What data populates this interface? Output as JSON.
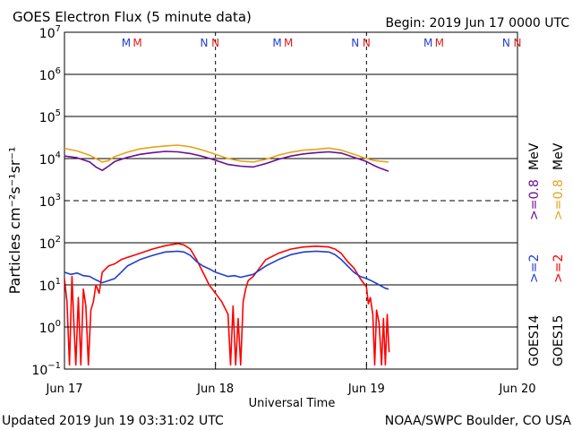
{
  "chart_data": {
    "type": "line",
    "title": "GOES Electron Flux (5 minute data)",
    "begin_label": "Begin: 2019 Jun 17 0000 UTC",
    "xlabel": "Universal Time",
    "ylabel": "Particles cm⁻²s⁻¹sr⁻¹",
    "x_unit": "hours since 2019 Jun 17 0000 UTC",
    "xlim": [
      0,
      72
    ],
    "ylim_log10": [
      -1,
      7
    ],
    "y_scale": "log",
    "x_ticks": [
      {
        "x": 0,
        "label": "Jun 17"
      },
      {
        "x": 24,
        "label": "Jun 18"
      },
      {
        "x": 48,
        "label": "Jun 19"
      },
      {
        "x": 72,
        "label": "Jun 20"
      }
    ],
    "y_ticks": [
      {
        "exp": -1,
        "base": "10",
        "sup": "−1"
      },
      {
        "exp": 0,
        "base": "10",
        "sup": "0"
      },
      {
        "exp": 1,
        "base": "10",
        "sup": "1"
      },
      {
        "exp": 2,
        "base": "10",
        "sup": "2"
      },
      {
        "exp": 3,
        "base": "10",
        "sup": "3"
      },
      {
        "exp": 4,
        "base": "10",
        "sup": "4"
      },
      {
        "exp": 5,
        "base": "10",
        "sup": "5"
      },
      {
        "exp": 6,
        "base": "10",
        "sup": "6"
      },
      {
        "exp": 7,
        "base": "10",
        "sup": "7"
      }
    ],
    "threshold_lines": [
      {
        "exp": 3,
        "style": "dashed"
      }
    ],
    "day_dividers": [
      24,
      48
    ],
    "markers": [
      {
        "x": 9.8,
        "text": "M",
        "color": "#1f3fcf"
      },
      {
        "x": 11.6,
        "text": "M",
        "color": "#e01b1b"
      },
      {
        "x": 22.2,
        "text": "N",
        "color": "#1f3fcf"
      },
      {
        "x": 24.0,
        "text": "N",
        "color": "#e01b1b"
      },
      {
        "x": 33.8,
        "text": "M",
        "color": "#1f3fcf"
      },
      {
        "x": 35.6,
        "text": "M",
        "color": "#e01b1b"
      },
      {
        "x": 46.2,
        "text": "N",
        "color": "#1f3fcf"
      },
      {
        "x": 48.0,
        "text": "N",
        "color": "#e01b1b"
      },
      {
        "x": 57.8,
        "text": "M",
        "color": "#1f3fcf"
      },
      {
        "x": 59.6,
        "text": "M",
        "color": "#e01b1b"
      },
      {
        "x": 70.2,
        "text": "N",
        "color": "#1f3fcf"
      },
      {
        "x": 72.0,
        "text": "N",
        "color": "#e01b1b"
      }
    ],
    "series": [
      {
        "name": "GOES15 >=0.8 MeV",
        "color": "#e8a317",
        "x": [
          0,
          2,
          4,
          5,
          6,
          7,
          8,
          10,
          12,
          14,
          16,
          18,
          20,
          22,
          24,
          26,
          28,
          30,
          32,
          34,
          36,
          38,
          40,
          42,
          44,
          46,
          48,
          49,
          50,
          51.5
        ],
        "log10_y": [
          4.24,
          4.18,
          4.08,
          4.0,
          3.92,
          3.95,
          4.05,
          4.15,
          4.23,
          4.27,
          4.3,
          4.32,
          4.28,
          4.2,
          4.1,
          4.0,
          3.94,
          3.92,
          3.98,
          4.08,
          4.15,
          4.2,
          4.22,
          4.25,
          4.2,
          4.1,
          4.0,
          3.96,
          3.94,
          3.92
        ]
      },
      {
        "name": "GOES14 >=0.8 MeV",
        "color": "#6a0d91",
        "x": [
          0,
          2,
          4,
          5,
          6,
          7,
          8,
          10,
          12,
          14,
          16,
          18,
          20,
          22,
          24,
          26,
          28,
          30,
          32,
          34,
          36,
          38,
          40,
          42,
          44,
          46,
          48,
          49,
          50,
          51.5
        ],
        "log10_y": [
          4.06,
          4.02,
          3.92,
          3.8,
          3.72,
          3.82,
          3.93,
          4.03,
          4.1,
          4.14,
          4.17,
          4.16,
          4.12,
          4.05,
          3.96,
          3.86,
          3.82,
          3.8,
          3.88,
          3.98,
          4.06,
          4.11,
          4.14,
          4.16,
          4.13,
          4.03,
          3.93,
          3.85,
          3.78,
          3.7
        ]
      },
      {
        "name": "GOES15 >=2 MeV",
        "color": "#ff0000",
        "x": [
          0,
          0.4,
          0.8,
          1.2,
          1.5,
          1.8,
          2.2,
          2.6,
          3,
          3.4,
          3.8,
          4.2,
          4.6,
          5,
          5.5,
          6,
          7,
          8,
          9,
          10,
          12,
          14,
          16,
          18,
          19,
          20,
          21,
          22,
          23,
          24,
          25,
          26,
          26.4,
          26.8,
          27.2,
          27.6,
          28,
          28.4,
          28.8,
          29.2,
          30,
          31,
          32,
          34,
          36,
          38,
          40,
          42,
          43,
          44,
          45,
          46,
          47,
          48,
          48.3,
          48.6,
          49,
          49.3,
          49.6,
          50,
          50.4,
          50.7,
          51,
          51.3,
          51.6
        ],
        "log10_y": [
          1.15,
          0.6,
          -0.9,
          1.2,
          0.1,
          -0.9,
          0.7,
          -0.9,
          0.9,
          0.5,
          -0.9,
          0.4,
          0.6,
          1.0,
          0.8,
          1.3,
          1.45,
          1.5,
          1.6,
          1.65,
          1.75,
          1.85,
          1.93,
          1.98,
          1.95,
          1.85,
          1.6,
          1.3,
          1.0,
          0.8,
          0.6,
          0.3,
          -0.9,
          0.5,
          -0.9,
          0.2,
          -0.9,
          0.6,
          0.9,
          1.1,
          1.2,
          1.4,
          1.6,
          1.75,
          1.85,
          1.9,
          1.92,
          1.9,
          1.85,
          1.75,
          1.55,
          1.4,
          1.15,
          0.95,
          0.55,
          0.7,
          0.3,
          -0.9,
          0.4,
          0.1,
          -0.9,
          0.2,
          -0.9,
          0.3,
          -0.6
        ]
      },
      {
        "name": "GOES14 >=2 MeV",
        "color": "#1f3fcf",
        "x": [
          0,
          1,
          2,
          3,
          4,
          5,
          6,
          7,
          8,
          9,
          10,
          12,
          14,
          16,
          18,
          19,
          20,
          21,
          22,
          23,
          24,
          25,
          26,
          27,
          28,
          30,
          32,
          34,
          36,
          38,
          40,
          42,
          43,
          44,
          45,
          46,
          47,
          48,
          49,
          50,
          51,
          51.5
        ],
        "log10_y": [
          1.3,
          1.25,
          1.28,
          1.22,
          1.2,
          1.12,
          1.05,
          1.1,
          1.15,
          1.3,
          1.45,
          1.6,
          1.7,
          1.78,
          1.8,
          1.78,
          1.7,
          1.55,
          1.45,
          1.38,
          1.3,
          1.25,
          1.2,
          1.22,
          1.18,
          1.25,
          1.45,
          1.6,
          1.72,
          1.78,
          1.8,
          1.78,
          1.72,
          1.6,
          1.45,
          1.3,
          1.2,
          1.15,
          1.08,
          1.0,
          0.92,
          0.9
        ]
      }
    ]
  },
  "legend_right": {
    "goes14": "GOES14",
    "goes15": "GOES15",
    "g14_2mev": ">=2",
    "g15_2mev": ">=2",
    "g14_08mev": ">=0.8",
    "g15_08mev": ">=0.8",
    "unit": "MeV"
  },
  "footer": {
    "updated": "Updated 2019 Jun 19 03:31:02 UTC",
    "source": "NOAA/SWPC Boulder, CO USA"
  },
  "colors": {
    "goes14_2": "#1f3fcf",
    "goes15_2": "#ff0000",
    "goes14_08": "#6a0d91",
    "goes15_08": "#e8a317"
  }
}
